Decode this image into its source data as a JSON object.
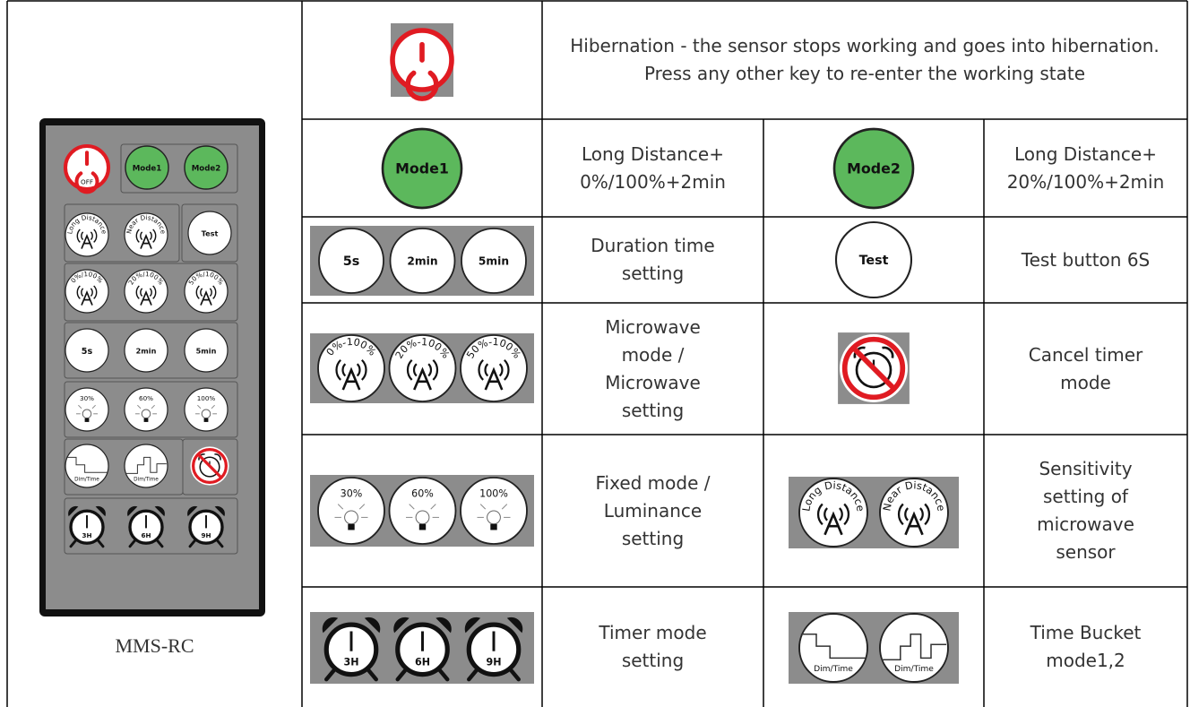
{
  "remote": {
    "model": "MMS-RC"
  },
  "buttons": {
    "off": "OFF",
    "mode1": "Mode1",
    "mode2": "Mode2",
    "test": "Test",
    "d5s": "5s",
    "d2min": "2min",
    "d5min": "5min",
    "l30": "30%",
    "l60": "60%",
    "l100": "100%",
    "long": "Long Distance",
    "near": "Near Distance",
    "m0": "0%/100%",
    "m20": "20%/100%",
    "m50": "50%/100%",
    "t0": "0%-100%",
    "t20": "20%-100%",
    "t50": "50%-100%",
    "dim": "Dim/Time",
    "h3": "3H",
    "h6": "6H",
    "h9": "9H"
  },
  "table": {
    "hibernation": "Hibernation - the sensor stops working and goes into hibernation. Press any other key to re-enter the working state",
    "rows": [
      [
        "Long Distance+ 0%/100%+2min",
        "Long Distance+ 20%/100%+2min"
      ],
      [
        "Duration time setting",
        "Test button 6S"
      ],
      [
        "Microwave mode / Microwave setting",
        "Cancel timer mode"
      ],
      [
        "Fixed mode / Luminance setting",
        "Sensitivity setting of microwave sensor"
      ],
      [
        "Timer mode setting",
        "Time Bucket mode1,2"
      ]
    ]
  }
}
